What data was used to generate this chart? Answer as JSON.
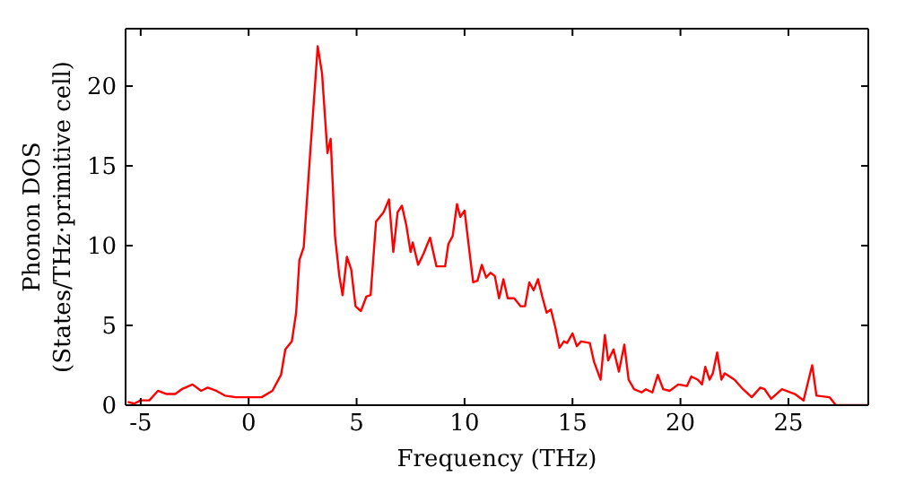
{
  "chart_data": {
    "type": "line",
    "xlabel": "Frequency (THz)",
    "ylabel": "Phonon DOS\n(States/THz·primitive cell)",
    "xlim": [
      -5.7,
      28.7
    ],
    "xticks": [
      -5,
      0,
      5,
      10,
      15,
      20,
      25
    ],
    "ylim": [
      0,
      23.6
    ],
    "yticks": [
      0,
      5,
      10,
      15,
      20
    ],
    "marker": "none",
    "line_style": "solid",
    "series": [
      {
        "color": "#ff0000",
        "x": [
          -5.6,
          -5.3,
          -5.0,
          -4.6,
          -4.2,
          -3.8,
          -3.4,
          -3.1,
          -2.6,
          -2.2,
          -1.9,
          -1.5,
          -1.1,
          -0.6,
          0.6,
          1.1,
          1.5,
          1.7,
          2.0,
          2.2,
          2.35,
          2.55,
          2.85,
          3.2,
          3.4,
          3.65,
          3.8,
          4.0,
          4.2,
          4.35,
          4.55,
          4.75,
          4.95,
          5.2,
          5.45,
          5.65,
          5.9,
          6.25,
          6.5,
          6.7,
          6.9,
          7.1,
          7.3,
          7.5,
          7.6,
          7.85,
          8.1,
          8.4,
          8.7,
          9.1,
          9.25,
          9.45,
          9.65,
          9.8,
          10.0,
          10.3,
          10.4,
          10.6,
          10.8,
          11.0,
          11.2,
          11.4,
          11.6,
          11.8,
          12.0,
          12.3,
          12.6,
          12.8,
          13.0,
          13.2,
          13.4,
          13.6,
          13.8,
          14.0,
          14.2,
          14.4,
          14.6,
          14.75,
          15.0,
          15.2,
          15.4,
          15.8,
          16.0,
          16.3,
          16.5,
          16.65,
          16.9,
          17.15,
          17.4,
          17.6,
          17.85,
          18.2,
          18.4,
          18.7,
          18.95,
          19.2,
          19.5,
          19.9,
          20.3,
          20.5,
          20.8,
          21.0,
          21.15,
          21.35,
          21.5,
          21.7,
          21.9,
          22.05,
          22.5,
          22.9,
          23.3,
          23.7,
          23.9,
          24.2,
          24.7,
          25.3,
          25.7,
          26.1,
          26.3,
          26.9,
          27.2,
          28.7
        ],
        "values": [
          0.2,
          0.1,
          0.3,
          0.3,
          0.9,
          0.7,
          0.7,
          1.0,
          1.3,
          0.9,
          1.1,
          0.9,
          0.6,
          0.5,
          0.5,
          0.9,
          1.9,
          3.5,
          4.0,
          5.8,
          9.1,
          9.9,
          15.8,
          22.5,
          20.8,
          15.8,
          16.7,
          10.6,
          8.1,
          6.9,
          9.3,
          8.5,
          6.2,
          5.9,
          6.8,
          6.9,
          11.5,
          12.1,
          12.9,
          9.6,
          12.1,
          12.5,
          11.3,
          9.6,
          10.2,
          8.8,
          9.5,
          10.5,
          8.7,
          8.7,
          10.1,
          10.6,
          12.6,
          11.8,
          12.2,
          8.8,
          7.7,
          7.8,
          8.8,
          8.0,
          8.3,
          8.1,
          6.7,
          7.9,
          6.7,
          6.7,
          6.2,
          6.2,
          7.7,
          7.2,
          7.9,
          6.8,
          5.8,
          6.0,
          4.9,
          3.6,
          4.0,
          3.9,
          4.5,
          3.7,
          4.0,
          3.9,
          2.7,
          1.6,
          4.4,
          2.8,
          3.5,
          2.1,
          3.8,
          1.6,
          1.0,
          0.8,
          1.0,
          0.8,
          1.9,
          1.0,
          0.9,
          1.3,
          1.2,
          1.8,
          1.6,
          1.3,
          2.4,
          1.6,
          2.0,
          3.3,
          1.6,
          2.0,
          1.6,
          1.0,
          0.5,
          1.1,
          1.0,
          0.4,
          1.0,
          0.7,
          0.3,
          2.5,
          0.6,
          0.5,
          0.0,
          0.0
        ]
      }
    ]
  }
}
